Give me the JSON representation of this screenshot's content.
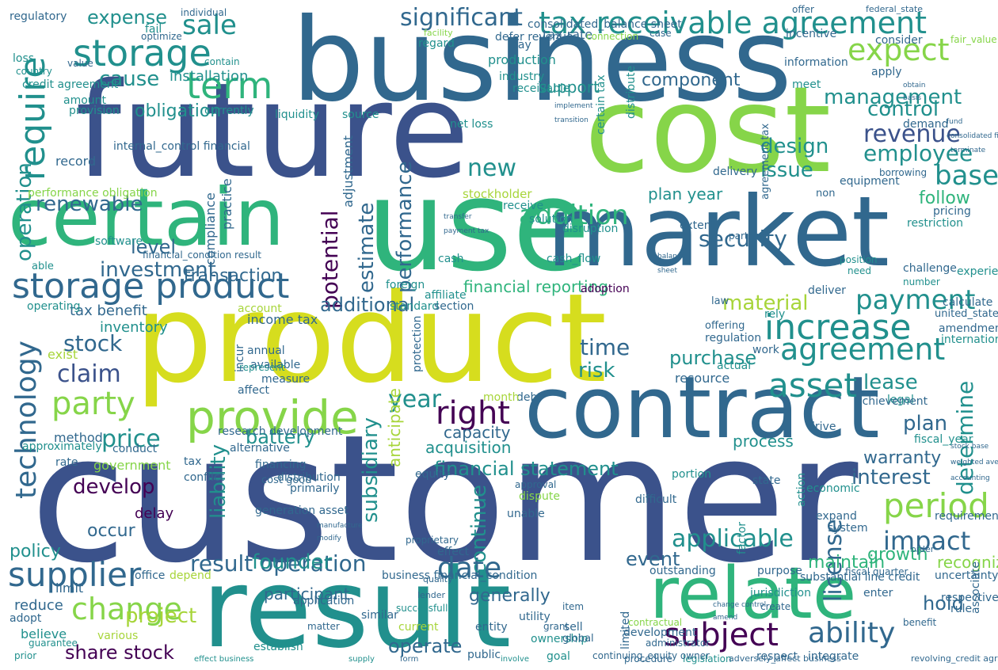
{
  "wordcloud": {
    "palette": {
      "yellow": "#d6dd1e",
      "lime": "#86d549",
      "green": "#2fb47c",
      "teal": "#21908d",
      "blue": "#31688e",
      "indigo": "#3b528b",
      "purple": "#440154",
      "olive": "#a7d53a"
    },
    "words": [
      {
        "t": "customer"
      },
      {
        "t": "future"
      },
      {
        "t": "business"
      },
      {
        "t": "cost"
      },
      {
        "t": "product"
      },
      {
        "t": "use"
      },
      {
        "t": "market"
      },
      {
        "t": "certain"
      },
      {
        "t": "result"
      },
      {
        "t": "contract"
      },
      {
        "t": "relate"
      },
      {
        "t": "provide"
      },
      {
        "t": "storage"
      },
      {
        "t": "storage product"
      },
      {
        "t": "tax receivable agreement"
      },
      {
        "t": "significant"
      },
      {
        "t": "expect"
      },
      {
        "t": "term"
      },
      {
        "t": "sale"
      },
      {
        "t": "expense"
      },
      {
        "t": "require"
      },
      {
        "t": "renewable"
      },
      {
        "t": "increase"
      },
      {
        "t": "agreement"
      },
      {
        "t": "asset"
      },
      {
        "t": "period"
      },
      {
        "t": "impact"
      },
      {
        "t": "subject"
      },
      {
        "t": "ability"
      },
      {
        "t": "change"
      },
      {
        "t": "supplier"
      },
      {
        "t": "party"
      },
      {
        "t": "technology"
      },
      {
        "t": "date"
      },
      {
        "t": "right"
      },
      {
        "t": "operation"
      },
      {
        "t": "result operation"
      },
      {
        "t": "addition"
      },
      {
        "t": "management"
      },
      {
        "t": "revenue"
      },
      {
        "t": "employee"
      },
      {
        "t": "base"
      },
      {
        "t": "payment"
      },
      {
        "t": "material"
      },
      {
        "t": "security"
      },
      {
        "t": "investment"
      },
      {
        "t": "transaction"
      },
      {
        "t": "battery"
      },
      {
        "t": "price"
      },
      {
        "t": "stock"
      },
      {
        "t": "claim"
      },
      {
        "t": "year"
      },
      {
        "t": "time"
      },
      {
        "t": "risk"
      },
      {
        "t": "purchase"
      },
      {
        "t": "plan"
      },
      {
        "t": "lease"
      },
      {
        "t": "interest"
      },
      {
        "t": "license"
      },
      {
        "t": "growth"
      },
      {
        "t": "event"
      },
      {
        "t": "applicable"
      },
      {
        "t": "share stock"
      },
      {
        "t": "project"
      },
      {
        "t": "develop"
      },
      {
        "t": "potential"
      },
      {
        "t": "performance"
      },
      {
        "t": "estimate"
      },
      {
        "t": "subsidiary"
      },
      {
        "t": "continue"
      },
      {
        "t": "new"
      },
      {
        "t": "cause"
      },
      {
        "t": "control"
      },
      {
        "t": "additional"
      },
      {
        "t": "design"
      },
      {
        "t": "issue"
      },
      {
        "t": "obligation"
      },
      {
        "t": "level"
      },
      {
        "t": "determine"
      },
      {
        "t": "hold"
      },
      {
        "t": "maintain"
      },
      {
        "t": "generally"
      },
      {
        "t": "operate"
      },
      {
        "t": "policy"
      },
      {
        "t": "reduce"
      },
      {
        "t": "limit"
      },
      {
        "t": "liability"
      },
      {
        "t": "financial reporting"
      },
      {
        "t": "installation"
      },
      {
        "t": "component"
      },
      {
        "t": "plan year"
      },
      {
        "t": "anticipate"
      },
      {
        "t": "financial statement"
      },
      {
        "t": "acquisition"
      },
      {
        "t": "founder"
      },
      {
        "t": "delay"
      },
      {
        "t": "occur"
      },
      {
        "t": "participant"
      },
      {
        "t": "warranty"
      },
      {
        "t": "recognize"
      },
      {
        "t": "process"
      },
      {
        "t": "fund"
      },
      {
        "t": "regulatory"
      },
      {
        "t": "support"
      },
      {
        "t": "production"
      },
      {
        "t": "facility"
      },
      {
        "t": "value"
      },
      {
        "t": "credit agreement"
      },
      {
        "t": "performance obligation"
      },
      {
        "t": "consolidated financial"
      },
      {
        "t": "tax benefit"
      },
      {
        "t": "operating"
      },
      {
        "t": "exist"
      },
      {
        "t": "inventory"
      },
      {
        "t": "method"
      },
      {
        "t": "software"
      },
      {
        "t": "record"
      },
      {
        "t": "able"
      },
      {
        "t": "practice"
      },
      {
        "t": "compliance"
      },
      {
        "t": "stockholder"
      },
      {
        "t": "disruption"
      },
      {
        "t": "receive"
      },
      {
        "t": "solution"
      },
      {
        "t": "extent"
      },
      {
        "t": "follow"
      },
      {
        "t": "restriction"
      },
      {
        "t": "resource"
      },
      {
        "t": "protection"
      },
      {
        "t": "capacity"
      },
      {
        "t": "approximately"
      },
      {
        "t": "rate"
      },
      {
        "t": "income tax"
      },
      {
        "t": "annual"
      },
      {
        "t": "available"
      },
      {
        "t": "measure"
      },
      {
        "t": "represent"
      },
      {
        "t": "affect"
      },
      {
        "t": "standard"
      },
      {
        "t": "affiliate"
      },
      {
        "t": "section"
      },
      {
        "t": "foreign"
      },
      {
        "t": "cash"
      },
      {
        "t": "cash_flow"
      },
      {
        "t": "adoption"
      },
      {
        "t": "account"
      },
      {
        "t": "incur"
      },
      {
        "t": "distribution"
      },
      {
        "t": "primarily"
      },
      {
        "t": "equity"
      },
      {
        "t": "dispute"
      },
      {
        "t": "unable"
      },
      {
        "t": "expand"
      },
      {
        "t": "economic"
      },
      {
        "t": "legal"
      },
      {
        "t": "fiscal_year"
      },
      {
        "t": "requirement"
      },
      {
        "t": "ownership"
      },
      {
        "t": "current"
      },
      {
        "t": "entity"
      },
      {
        "t": "utility"
      },
      {
        "t": "grant"
      },
      {
        "t": "limited"
      },
      {
        "t": "development"
      },
      {
        "t": "enter"
      },
      {
        "t": "rule"
      },
      {
        "t": "benefit"
      },
      {
        "t": "respect"
      },
      {
        "t": "integrate"
      },
      {
        "t": "guarantee"
      },
      {
        "t": "believe"
      },
      {
        "t": "various"
      },
      {
        "t": "prior"
      },
      {
        "t": "establish"
      },
      {
        "t": "public"
      },
      {
        "t": "global"
      },
      {
        "t": "sell"
      },
      {
        "t": "legislation"
      },
      {
        "t": "procedure"
      },
      {
        "t": "respectively"
      },
      {
        "t": "jurisdiction"
      },
      {
        "t": "item"
      },
      {
        "t": "matter"
      },
      {
        "t": "similar"
      },
      {
        "t": "adopt"
      },
      {
        "t": "rely"
      },
      {
        "t": "deliver"
      },
      {
        "t": "amendment"
      },
      {
        "t": "international"
      },
      {
        "t": "experience"
      },
      {
        "t": "calculate"
      },
      {
        "t": "pricing"
      },
      {
        "t": "challenge"
      },
      {
        "t": "number"
      },
      {
        "t": "need"
      },
      {
        "t": "position"
      },
      {
        "t": "delivery"
      },
      {
        "t": "equipment"
      },
      {
        "t": "demand"
      },
      {
        "t": "meet"
      },
      {
        "t": "industry"
      },
      {
        "t": "amount"
      },
      {
        "t": "liquidity"
      },
      {
        "t": "source"
      },
      {
        "t": "currently"
      },
      {
        "t": "provision"
      },
      {
        "t": "regard"
      },
      {
        "t": "apply"
      },
      {
        "t": "consider"
      },
      {
        "t": "fair_value"
      },
      {
        "t": "information"
      },
      {
        "t": "incentive"
      },
      {
        "t": "net loss"
      },
      {
        "t": "case"
      },
      {
        "t": "financial_condition result"
      },
      {
        "t": "internal_control financial"
      },
      {
        "t": "adjustment"
      },
      {
        "t": "loss"
      },
      {
        "t": "country"
      },
      {
        "t": "fail"
      },
      {
        "t": "optimize"
      },
      {
        "t": "contain"
      },
      {
        "t": "individual"
      },
      {
        "t": "offer"
      },
      {
        "t": "defer revenue"
      },
      {
        "t": "federal_state"
      },
      {
        "t": "tax rate"
      },
      {
        "t": "consolidated_balance sheet"
      },
      {
        "t": "pay"
      },
      {
        "t": "debt"
      },
      {
        "t": "month"
      },
      {
        "t": "business financial_condition"
      },
      {
        "t": "effect"
      },
      {
        "t": "proprietary"
      },
      {
        "t": "terminate"
      },
      {
        "t": "conduct"
      },
      {
        "t": "government"
      },
      {
        "t": "alternative"
      },
      {
        "t": "outstanding"
      },
      {
        "t": "substantial line credit"
      },
      {
        "t": "associate"
      },
      {
        "t": "uncertainty"
      },
      {
        "t": "system"
      },
      {
        "t": "difficult"
      },
      {
        "t": "factor"
      },
      {
        "t": "portion"
      },
      {
        "t": "state"
      },
      {
        "t": "drive"
      },
      {
        "t": "transfer"
      },
      {
        "t": "depend"
      },
      {
        "t": "office"
      },
      {
        "t": "application"
      },
      {
        "t": "purpose"
      },
      {
        "t": "administrator"
      },
      {
        "t": "contractual"
      },
      {
        "t": "create"
      },
      {
        "t": "fiscal quarter"
      },
      {
        "t": "borrowing"
      },
      {
        "t": "work"
      },
      {
        "t": "regulation"
      },
      {
        "t": "law"
      },
      {
        "t": "offering"
      },
      {
        "t": "actual"
      },
      {
        "t": "achievement"
      },
      {
        "t": "united_state"
      },
      {
        "t": "order"
      },
      {
        "t": "payment tax"
      },
      {
        "t": "connection"
      },
      {
        "t": "certain tax"
      },
      {
        "t": "distribute"
      },
      {
        "t": "receivable"
      },
      {
        "t": "implement"
      },
      {
        "t": "transition"
      },
      {
        "t": "balance"
      },
      {
        "t": "sheet"
      },
      {
        "t": "manufacture"
      },
      {
        "t": "agreement tax"
      },
      {
        "t": "non"
      },
      {
        "t": "partner"
      },
      {
        "t": "action"
      },
      {
        "t": "form"
      },
      {
        "t": "involve"
      },
      {
        "t": "goal"
      },
      {
        "t": "continuing_equity owner"
      },
      {
        "t": "adversely_affect business"
      },
      {
        "t": "revolving_credit agreement"
      },
      {
        "t": "effect business"
      },
      {
        "t": "supply"
      },
      {
        "t": "modify"
      },
      {
        "t": "successfully"
      },
      {
        "t": "change control"
      },
      {
        "t": "generation asset"
      },
      {
        "t": "tax"
      },
      {
        "t": "financing"
      },
      {
        "t": "cost good"
      },
      {
        "t": "approval"
      },
      {
        "t": "conflict"
      },
      {
        "t": "research development"
      },
      {
        "t": "lender"
      },
      {
        "t": "amend"
      },
      {
        "t": "quality"
      },
      {
        "t": "obtain"
      },
      {
        "t": "basis"
      },
      {
        "t": "stock base"
      },
      {
        "t": "weighted average"
      },
      {
        "t": "accounting"
      }
    ]
  }
}
